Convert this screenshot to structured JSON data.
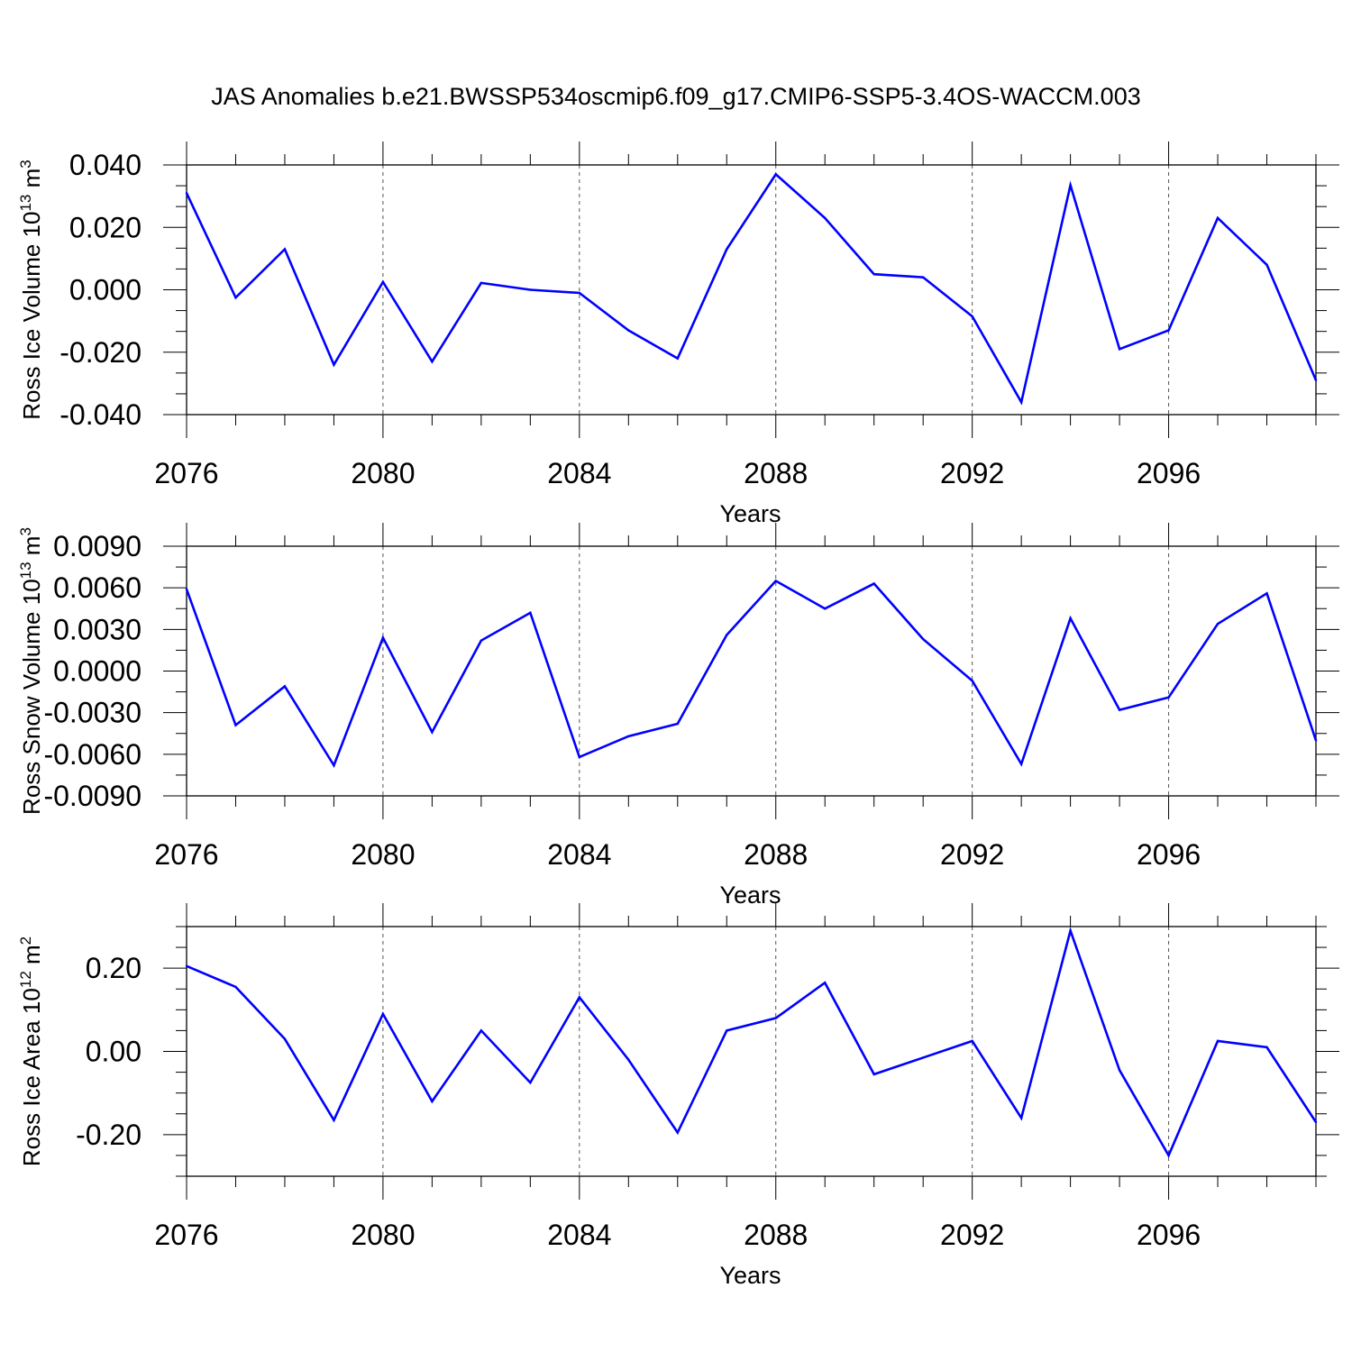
{
  "title": "JAS Anomalies b.e21.BWSSP534oscmip6.f09_g17.CMIP6-SSP5-3.4OS-WACCM.003",
  "colors": {
    "line": "#0000ff",
    "axis": "#000000",
    "grid": "#555555"
  },
  "chart_data": [
    {
      "type": "line",
      "ylabel": "Ross Ice Volume",
      "ylabel_scale": "10",
      "ylabel_exp": "13",
      "ylabel_unit": "m",
      "ylabel_unit_exp": "3",
      "xlabel": "Years",
      "xlim": [
        2076,
        2099
      ],
      "ylim": [
        -0.04,
        0.04
      ],
      "x_ticks": [
        "2076",
        "2080",
        "2084",
        "2088",
        "2092",
        "2096"
      ],
      "y_ticks": [
        "0.040",
        "0.020",
        "0.000",
        "-0.020",
        "-0.040"
      ],
      "y_tick_values": [
        0.04,
        0.02,
        0.0,
        -0.02,
        -0.04
      ],
      "x": [
        2076,
        2077,
        2078,
        2079,
        2080,
        2081,
        2082,
        2083,
        2084,
        2085,
        2086,
        2087,
        2088,
        2089,
        2090,
        2091,
        2092,
        2093,
        2094,
        2095,
        2096,
        2097,
        2098,
        2099
      ],
      "values": [
        0.031,
        -0.0025,
        0.013,
        -0.024,
        0.0025,
        -0.023,
        0.0022,
        0.0,
        -0.001,
        -0.013,
        -0.022,
        0.013,
        0.037,
        0.023,
        0.005,
        0.004,
        -0.0085,
        -0.036,
        0.0335,
        -0.019,
        -0.013,
        0.023,
        0.008,
        -0.029
      ]
    },
    {
      "type": "line",
      "ylabel": "Ross Snow Volume",
      "ylabel_scale": "10",
      "ylabel_exp": "13",
      "ylabel_unit": "m",
      "ylabel_unit_exp": "3",
      "xlabel": "Years",
      "xlim": [
        2076,
        2099
      ],
      "ylim": [
        -0.009,
        0.009
      ],
      "x_ticks": [
        "2076",
        "2080",
        "2084",
        "2088",
        "2092",
        "2096"
      ],
      "y_ticks": [
        "0.0090",
        "0.0060",
        "0.0030",
        "0.0000",
        "-0.0030",
        "-0.0060",
        "-0.0090"
      ],
      "y_tick_values": [
        0.009,
        0.006,
        0.003,
        0.0,
        -0.003,
        -0.006,
        -0.009
      ],
      "x": [
        2076,
        2077,
        2078,
        2079,
        2080,
        2081,
        2082,
        2083,
        2084,
        2085,
        2086,
        2087,
        2088,
        2089,
        2090,
        2091,
        2092,
        2093,
        2094,
        2095,
        2096,
        2097,
        2098,
        2099
      ],
      "values": [
        0.0059,
        -0.0039,
        -0.0011,
        -0.0068,
        0.0024,
        -0.0044,
        0.0022,
        0.0042,
        -0.0062,
        -0.0047,
        -0.0038,
        0.0026,
        0.0065,
        0.0045,
        0.0063,
        0.0023,
        -0.0007,
        -0.0067,
        0.0038,
        -0.0028,
        -0.0019,
        0.0034,
        0.0056,
        -0.005
      ]
    },
    {
      "type": "line",
      "ylabel": "Ross Ice Area",
      "ylabel_scale": "10",
      "ylabel_exp": "12",
      "ylabel_unit": "m",
      "ylabel_unit_exp": "2",
      "xlabel": "Years",
      "xlim": [
        2076,
        2099
      ],
      "ylim": [
        -0.3,
        0.3
      ],
      "x_ticks": [
        "2076",
        "2080",
        "2084",
        "2088",
        "2092",
        "2096"
      ],
      "y_ticks": [
        "0.20",
        "0.00",
        "-0.20"
      ],
      "y_tick_values": [
        0.2,
        0.0,
        -0.2
      ],
      "x": [
        2076,
        2077,
        2078,
        2079,
        2080,
        2081,
        2082,
        2083,
        2084,
        2085,
        2086,
        2087,
        2088,
        2089,
        2090,
        2091,
        2092,
        2093,
        2094,
        2095,
        2096,
        2097,
        2098,
        2099
      ],
      "values": [
        0.205,
        0.155,
        0.03,
        -0.165,
        0.09,
        -0.12,
        0.05,
        -0.075,
        0.13,
        -0.02,
        -0.195,
        0.05,
        0.08,
        0.165,
        -0.055,
        -0.015,
        0.025,
        -0.16,
        0.29,
        -0.045,
        -0.25,
        0.025,
        0.01,
        -0.17
      ]
    }
  ]
}
